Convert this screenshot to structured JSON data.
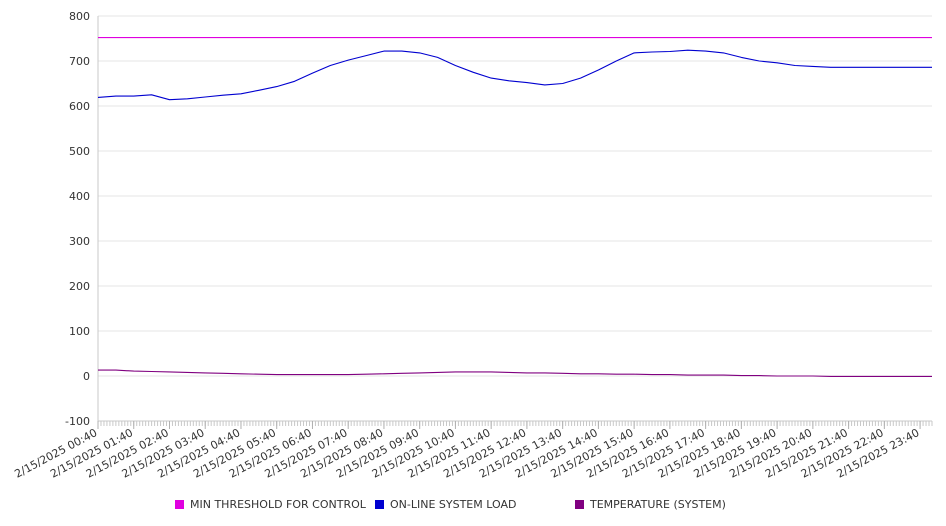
{
  "chart_data": {
    "type": "line",
    "title": "",
    "xlabel": "",
    "ylabel": "",
    "ylim": [
      -100,
      800
    ],
    "yticks": [
      -100,
      0,
      100,
      200,
      300,
      400,
      500,
      600,
      700,
      800
    ],
    "grid": true,
    "legend_position": "bottom",
    "xtick_labels": [
      "2/15/2025 00:40",
      "2/15/2025 01:40",
      "2/15/2025 02:40",
      "2/15/2025 03:40",
      "2/15/2025 04:40",
      "2/15/2025 05:40",
      "2/15/2025 06:40",
      "2/15/2025 07:40",
      "2/15/2025 08:40",
      "2/15/2025 09:40",
      "2/15/2025 10:40",
      "2/15/2025 11:40",
      "2/15/2025 12:40",
      "2/15/2025 13:40",
      "2/15/2025 14:40",
      "2/15/2025 15:40",
      "2/15/2025 16:40",
      "2/15/2025 17:40",
      "2/15/2025 18:40",
      "2/15/2025 19:40",
      "2/15/2025 20:40",
      "2/15/2025 21:40",
      "2/15/2025 22:40",
      "2/15/2025 23:40"
    ],
    "x": [
      "2/15/2025 00:40",
      "2/15/2025 01:10",
      "2/15/2025 01:40",
      "2/15/2025 02:10",
      "2/15/2025 02:40",
      "2/15/2025 03:10",
      "2/15/2025 03:40",
      "2/15/2025 04:10",
      "2/15/2025 04:40",
      "2/15/2025 05:10",
      "2/15/2025 05:40",
      "2/15/2025 06:10",
      "2/15/2025 06:40",
      "2/15/2025 07:10",
      "2/15/2025 07:40",
      "2/15/2025 08:10",
      "2/15/2025 08:40",
      "2/15/2025 09:10",
      "2/15/2025 09:40",
      "2/15/2025 10:10",
      "2/15/2025 10:40",
      "2/15/2025 11:10",
      "2/15/2025 11:40",
      "2/15/2025 12:10",
      "2/15/2025 12:40",
      "2/15/2025 13:10",
      "2/15/2025 13:40",
      "2/15/2025 14:10",
      "2/15/2025 14:40",
      "2/15/2025 15:10",
      "2/15/2025 15:40",
      "2/15/2025 16:10",
      "2/15/2025 16:40",
      "2/15/2025 17:10",
      "2/15/2025 17:40",
      "2/15/2025 18:10",
      "2/15/2025 18:40",
      "2/15/2025 19:10",
      "2/15/2025 19:40",
      "2/15/2025 20:10",
      "2/15/2025 20:40",
      "2/15/2025 21:10",
      "2/15/2025 21:40",
      "2/15/2025 22:10",
      "2/15/2025 22:40",
      "2/15/2025 23:10",
      "2/15/2025 23:40",
      "2/15/2025 24:00"
    ],
    "series": [
      {
        "name": "MIN THRESHOLD FOR CONTROL",
        "color": "#e000e0",
        "values": [
          752,
          752,
          752,
          752,
          752,
          752,
          752,
          752,
          752,
          752,
          752,
          752,
          752,
          752,
          752,
          752,
          752,
          752,
          752,
          752,
          752,
          752,
          752,
          752,
          752,
          752,
          752,
          752,
          752,
          752,
          752,
          752,
          752,
          752,
          752,
          752,
          752,
          752,
          752,
          752,
          752,
          752,
          752,
          752,
          752,
          752,
          752,
          752
        ]
      },
      {
        "name": "ON-LINE SYSTEM LOAD",
        "color": "#0000d0",
        "values": [
          619,
          622,
          622,
          625,
          614,
          616,
          620,
          624,
          627,
          635,
          643,
          655,
          673,
          690,
          702,
          712,
          722,
          722,
          718,
          708,
          690,
          675,
          662,
          656,
          652,
          647,
          650,
          662,
          680,
          700,
          718,
          720,
          721,
          724,
          722,
          718,
          708,
          700,
          696,
          690,
          688,
          686,
          686,
          686,
          686,
          686,
          686,
          686
        ]
      },
      {
        "name": "TEMPERATURE (SYSTEM)",
        "color": "#800080",
        "values": [
          13,
          13,
          11,
          10,
          9,
          8,
          7,
          6,
          5,
          4,
          3,
          3,
          3,
          3,
          3,
          4,
          5,
          6,
          7,
          8,
          9,
          9,
          9,
          8,
          7,
          7,
          6,
          5,
          5,
          4,
          4,
          3,
          3,
          2,
          2,
          2,
          1,
          1,
          0,
          0,
          0,
          -1,
          -1,
          -1,
          -1,
          -1,
          -1,
          -1
        ]
      }
    ]
  }
}
